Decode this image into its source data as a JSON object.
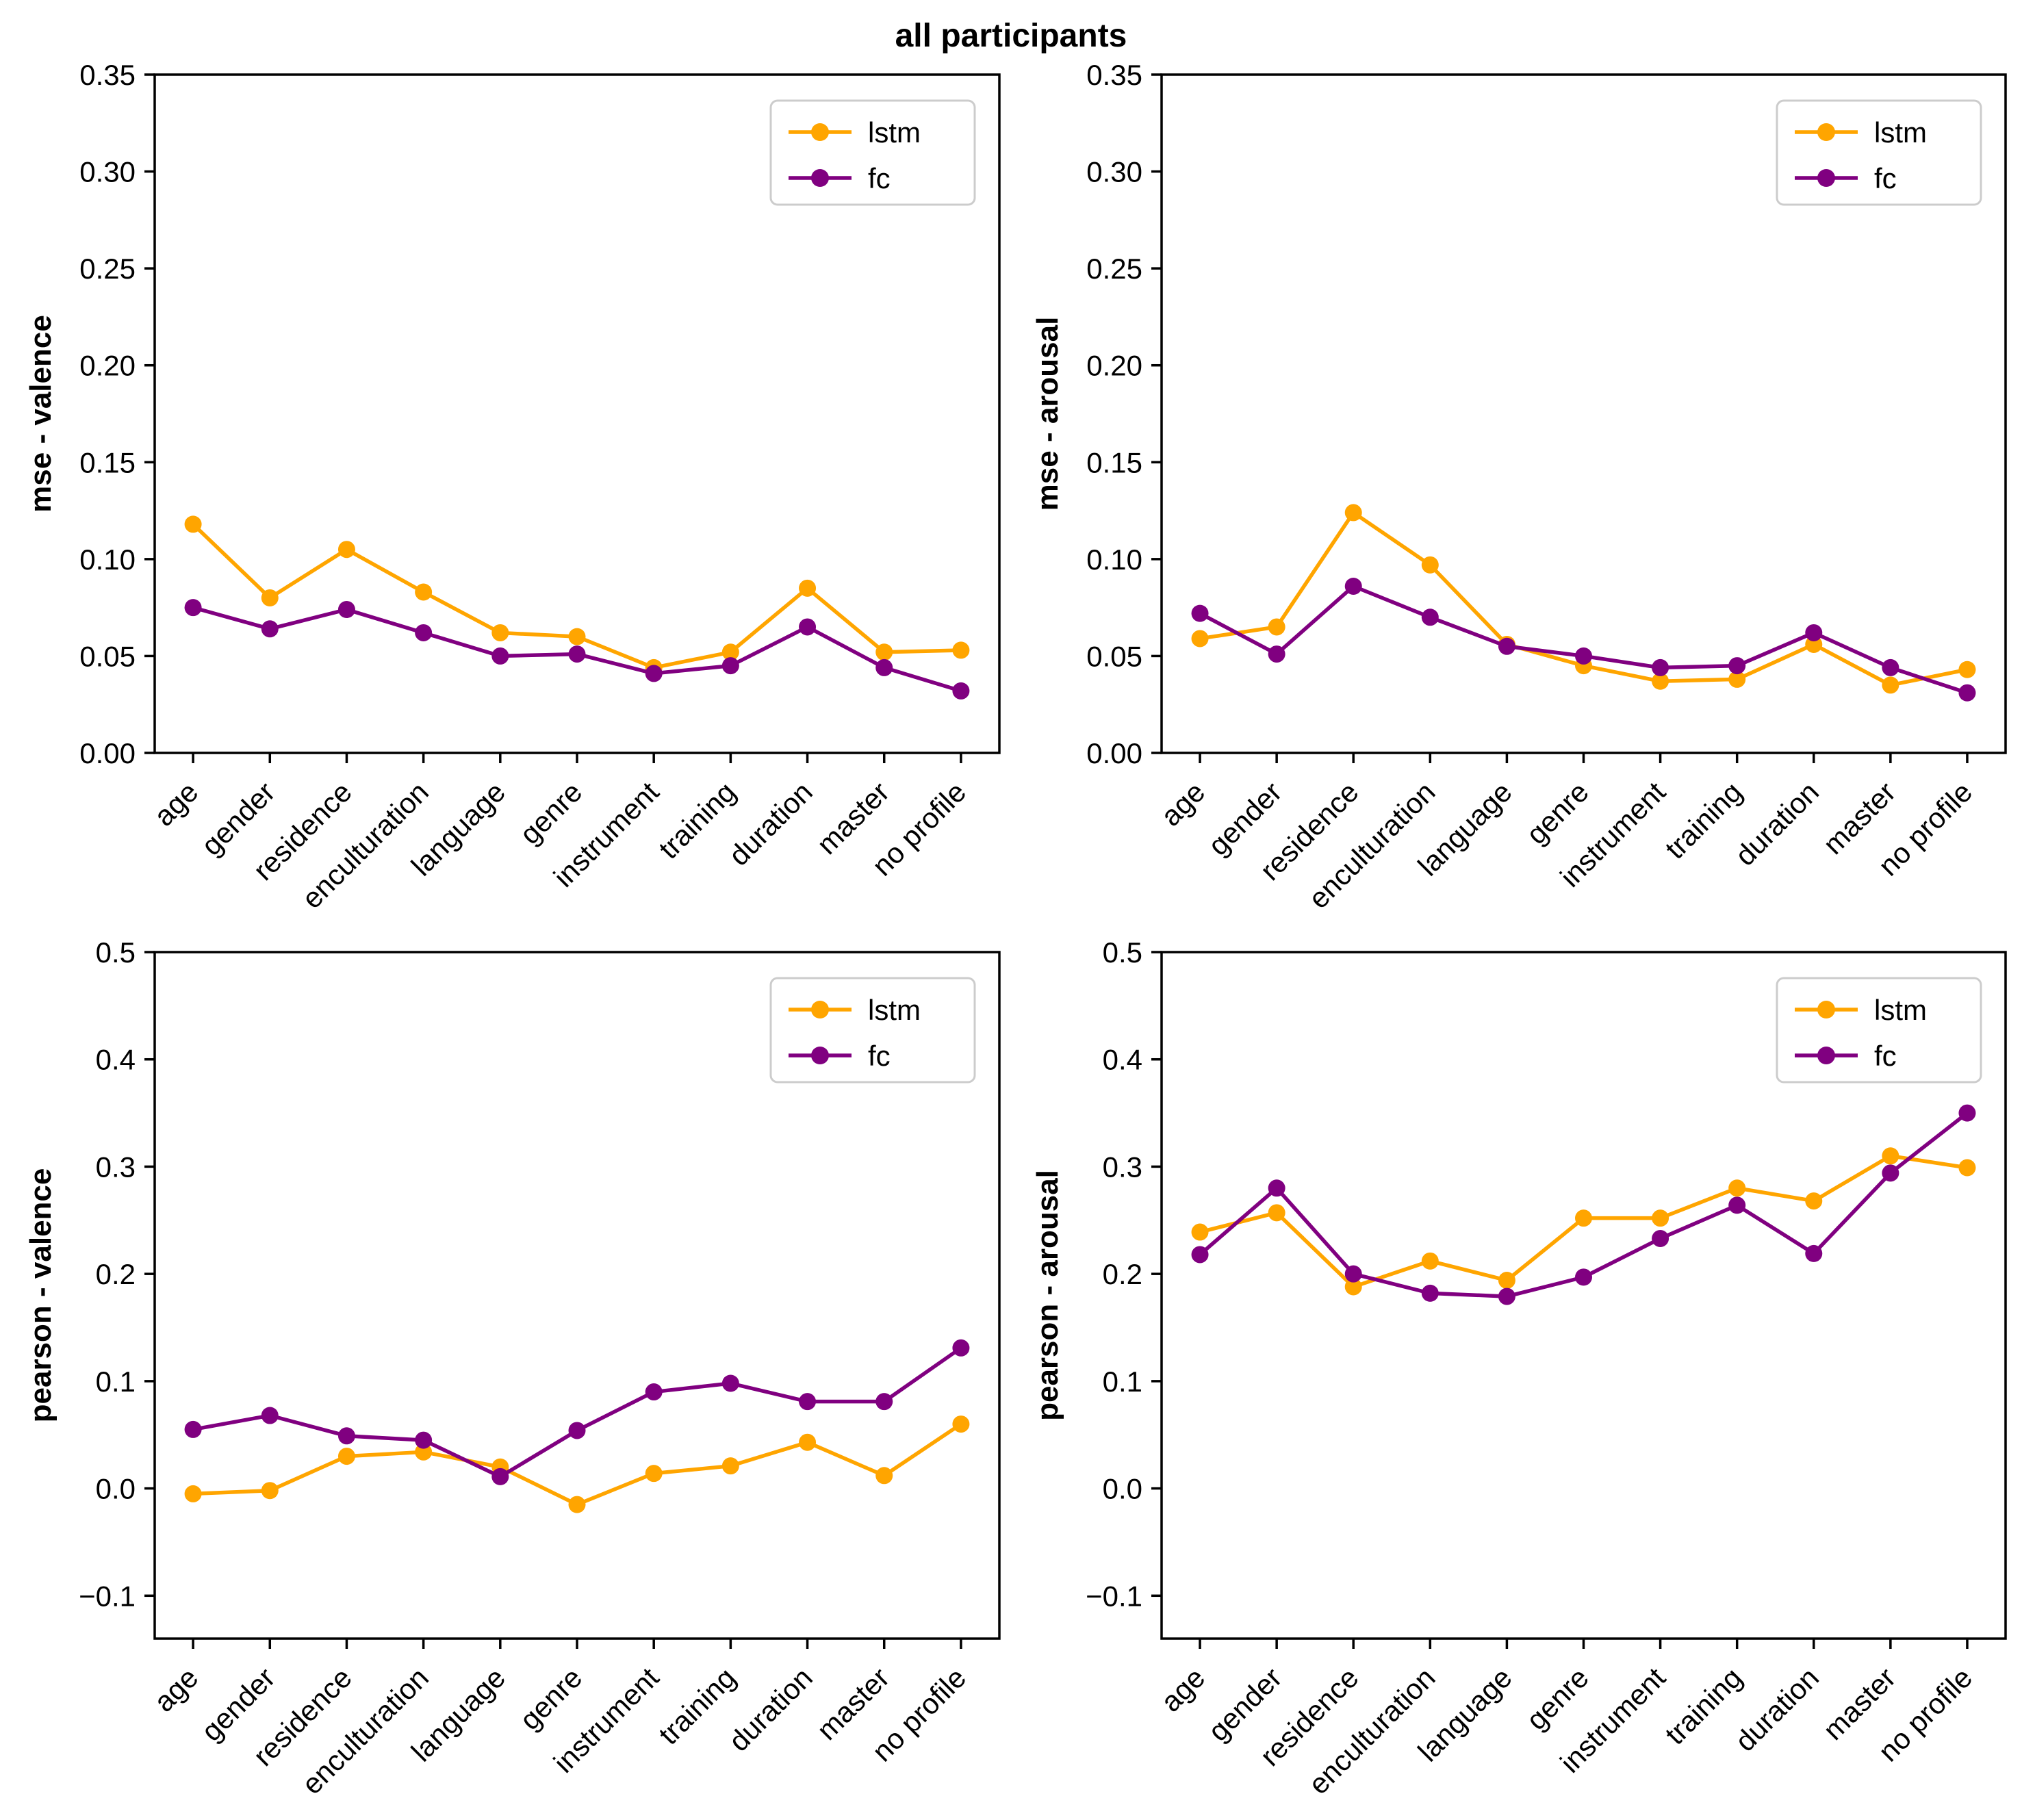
{
  "title": "all participants",
  "categories": [
    "age",
    "gender",
    "residence",
    "enculturation",
    "language",
    "genre",
    "instrument",
    "training",
    "duration",
    "master",
    "no profile"
  ],
  "series_meta": [
    {
      "name": "lstm",
      "color": "#FFA500"
    },
    {
      "name": "fc",
      "color": "#800080"
    }
  ],
  "chart_data": [
    {
      "type": "line",
      "id": "mse-valence",
      "ylabel": "mse - valence",
      "xlabel": "",
      "ylim": [
        0.0,
        0.35
      ],
      "yticks": [
        0.0,
        0.05,
        0.1,
        0.15,
        0.2,
        0.25,
        0.3,
        0.35
      ],
      "ytick_labels": [
        "0.00",
        "0.05",
        "0.10",
        "0.15",
        "0.20",
        "0.25",
        "0.30",
        "0.35"
      ],
      "grid": false,
      "legend_position": "upper right",
      "series": [
        {
          "name": "lstm",
          "values": [
            0.118,
            0.08,
            0.105,
            0.083,
            0.062,
            0.06,
            0.044,
            0.052,
            0.085,
            0.052,
            0.053
          ]
        },
        {
          "name": "fc",
          "values": [
            0.075,
            0.064,
            0.074,
            0.062,
            0.05,
            0.051,
            0.041,
            0.045,
            0.065,
            0.044,
            0.032
          ]
        }
      ]
    },
    {
      "type": "line",
      "id": "mse-arousal",
      "ylabel": "mse - arousal",
      "xlabel": "",
      "ylim": [
        0.0,
        0.35
      ],
      "yticks": [
        0.0,
        0.05,
        0.1,
        0.15,
        0.2,
        0.25,
        0.3,
        0.35
      ],
      "ytick_labels": [
        "0.00",
        "0.05",
        "0.10",
        "0.15",
        "0.20",
        "0.25",
        "0.30",
        "0.35"
      ],
      "grid": false,
      "legend_position": "upper right",
      "series": [
        {
          "name": "lstm",
          "values": [
            0.059,
            0.065,
            0.124,
            0.097,
            0.056,
            0.045,
            0.037,
            0.038,
            0.056,
            0.035,
            0.043
          ]
        },
        {
          "name": "fc",
          "values": [
            0.072,
            0.051,
            0.086,
            0.07,
            0.055,
            0.05,
            0.044,
            0.045,
            0.062,
            0.044,
            0.031
          ]
        }
      ]
    },
    {
      "type": "line",
      "id": "pearson-valence",
      "ylabel": "pearson - valence",
      "xlabel": "",
      "ylim": [
        -0.14,
        0.5
      ],
      "yticks": [
        -0.1,
        0.0,
        0.1,
        0.2,
        0.3,
        0.4,
        0.5
      ],
      "ytick_labels": [
        "−0.1",
        "0.0",
        "0.1",
        "0.2",
        "0.3",
        "0.4",
        "0.5"
      ],
      "grid": false,
      "legend_position": "upper right",
      "series": [
        {
          "name": "lstm",
          "values": [
            -0.005,
            -0.002,
            0.03,
            0.034,
            0.02,
            -0.015,
            0.014,
            0.021,
            0.043,
            0.012,
            0.06
          ]
        },
        {
          "name": "fc",
          "values": [
            0.055,
            0.068,
            0.049,
            0.045,
            0.011,
            0.054,
            0.09,
            0.098,
            0.081,
            0.081,
            0.131
          ]
        }
      ]
    },
    {
      "type": "line",
      "id": "pearson-arousal",
      "ylabel": "pearson - arousal",
      "xlabel": "",
      "ylim": [
        -0.14,
        0.5
      ],
      "yticks": [
        -0.1,
        0.0,
        0.1,
        0.2,
        0.3,
        0.4,
        0.5
      ],
      "ytick_labels": [
        "−0.1",
        "0.0",
        "0.1",
        "0.2",
        "0.3",
        "0.4",
        "0.5"
      ],
      "grid": false,
      "legend_position": "upper right",
      "series": [
        {
          "name": "lstm",
          "values": [
            0.239,
            0.257,
            0.188,
            0.212,
            0.194,
            0.252,
            0.252,
            0.28,
            0.268,
            0.31,
            0.299
          ]
        },
        {
          "name": "fc",
          "values": [
            0.218,
            0.28,
            0.2,
            0.182,
            0.179,
            0.197,
            0.233,
            0.264,
            0.219,
            0.294,
            0.35
          ]
        }
      ]
    }
  ]
}
